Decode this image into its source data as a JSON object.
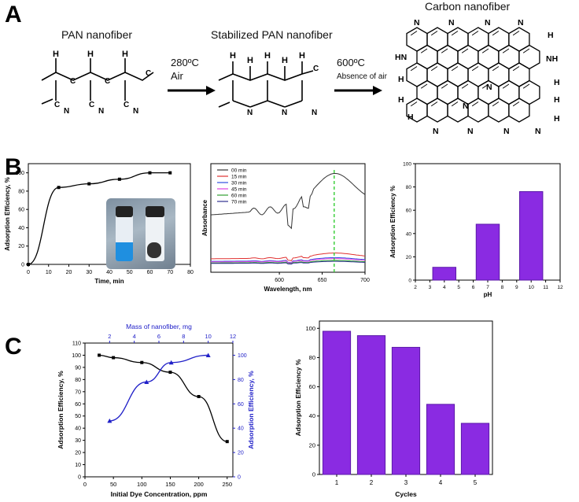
{
  "panel_labels": {
    "a": "A",
    "b": "B",
    "c": "C"
  },
  "scheme": {
    "pan_title": "PAN nanofiber",
    "stab_title": "Stabilized PAN nanofiber",
    "carbon_title": "Carbon nanofiber",
    "step1_temp": "280ºC",
    "step1_cond": "Air",
    "step2_temp": "600ºC",
    "step2_cond": "Absence of air",
    "atoms": {
      "H": "H",
      "C": "C",
      "N": "N",
      "HN": "HN",
      "NH": "NH"
    }
  },
  "colors": {
    "line_black": "#000000",
    "blue": "#2020c8",
    "purple": "#8a2be2",
    "purple_edge": "#5b1aa8",
    "green_dash": "#33cc33"
  },
  "chart_data": [
    {
      "id": "B1",
      "type": "line",
      "xlabel": "Time, min",
      "ylabel": "Adsorption Efficiency, %",
      "xlim": [
        0,
        80
      ],
      "ylim": [
        0,
        110
      ],
      "xticks": [
        0,
        10,
        20,
        30,
        40,
        50,
        60,
        70,
        80
      ],
      "yticks": [
        0,
        20,
        40,
        60,
        80,
        100
      ],
      "x": [
        0,
        15,
        30,
        45,
        60,
        70
      ],
      "y": [
        0,
        84,
        88,
        93,
        100,
        100
      ]
    },
    {
      "id": "B2",
      "type": "line",
      "xlabel": "Wavelength, nm",
      "ylabel": "Absorbance",
      "xlim": [
        520,
        700
      ],
      "xticks": [
        600,
        650,
        700
      ],
      "legend_position": "top-left",
      "series": [
        {
          "name": "00 min",
          "color": "#333333"
        },
        {
          "name": "15 min",
          "color": "#e03030"
        },
        {
          "name": "30 min",
          "color": "#3050e0"
        },
        {
          "name": "45 min",
          "color": "#e040e0"
        },
        {
          "name": "60 min",
          "color": "#30a030"
        },
        {
          "name": "70 min",
          "color": "#303090"
        }
      ],
      "annotation": "peak ~664 nm (dashed)"
    },
    {
      "id": "B3",
      "type": "bar",
      "xlabel": "pH",
      "ylabel": "Adsorption Efficiency %",
      "xlim": [
        2,
        12
      ],
      "ylim": [
        0,
        100
      ],
      "xticks": [
        2,
        3,
        4,
        5,
        6,
        7,
        8,
        9,
        10,
        11,
        12
      ],
      "yticks": [
        0,
        20,
        40,
        60,
        80,
        100
      ],
      "x": [
        4,
        7,
        10
      ],
      "values": [
        11,
        48,
        76
      ]
    },
    {
      "id": "C1",
      "type": "line",
      "xlabel": "Initial Dye Concentration, ppm",
      "ylabel": "Adsorption Efficiency, %",
      "top_xlabel": "Mass of nanofiber, mg",
      "right_ylabel": "Adsorption Efficiency, %",
      "xlim": [
        0,
        260
      ],
      "ylim": [
        0,
        110
      ],
      "top_xlim": [
        0,
        12
      ],
      "right_ylim": [
        0,
        110
      ],
      "xticks": [
        0,
        50,
        100,
        150,
        200,
        250
      ],
      "yticks": [
        0,
        10,
        20,
        30,
        40,
        50,
        60,
        70,
        80,
        90,
        100,
        110
      ],
      "top_xticks": [
        2,
        4,
        6,
        8,
        10,
        12
      ],
      "right_yticks": [
        0,
        20,
        40,
        60,
        80,
        100
      ],
      "series": [
        {
          "axis": "bottom-left",
          "color": "#000000",
          "x": [
            25,
            50,
            100,
            150,
            200,
            250
          ],
          "y": [
            100,
            98,
            94,
            86,
            66,
            29
          ]
        },
        {
          "axis": "top-right",
          "color": "#2020c8",
          "x": [
            2,
            5,
            7,
            10
          ],
          "y": [
            46,
            78,
            94,
            100
          ]
        }
      ]
    },
    {
      "id": "C2",
      "type": "bar",
      "xlabel": "Cycles",
      "ylabel": "Adsorption Efficiency %",
      "ylim": [
        0,
        105
      ],
      "yticks": [
        0,
        20,
        40,
        60,
        80,
        100
      ],
      "categories": [
        "1",
        "2",
        "3",
        "4",
        "5"
      ],
      "values": [
        98,
        95,
        87,
        48,
        35
      ]
    }
  ]
}
